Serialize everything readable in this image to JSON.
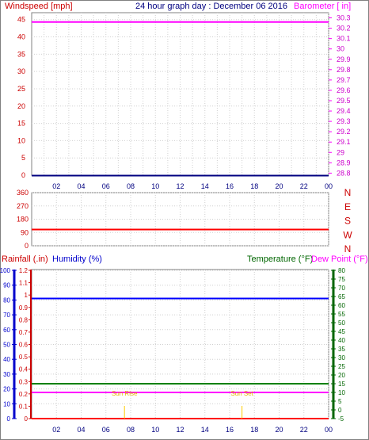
{
  "header": {
    "title": "24 hour graph day : December 06 2016",
    "left_label": "Windspeed [mph]",
    "right_label": "Barometer [ in]"
  },
  "colors": {
    "red": "#ff0000",
    "magenta": "#ff00ff",
    "blue": "#0000ff",
    "navy": "#000080",
    "green": "#006600",
    "gray": "#808080",
    "grid": "#d0d0d0",
    "sun": "#ffcc00"
  },
  "x_ticks": [
    "02",
    "04",
    "06",
    "08",
    "10",
    "12",
    "14",
    "16",
    "18",
    "20",
    "22",
    "00"
  ],
  "chart_data": [
    {
      "type": "line",
      "title": "24 hour graph day : December 06 2016",
      "ylabel": "Windspeed [mph]",
      "y2label": "Barometer [ in]",
      "y_ticks": [
        "0",
        "5",
        "10",
        "15",
        "20",
        "25",
        "30",
        "35",
        "40",
        "45"
      ],
      "y2_ticks": [
        "28.8",
        "28.9",
        "29",
        "29.1",
        "29.2",
        "29.3",
        "29.4",
        "29.5",
        "29.6",
        "29.7",
        "29.8",
        "29.9",
        "30",
        "30.1",
        "30.2",
        "30.3"
      ],
      "ylim": [
        0,
        47
      ],
      "y2lim": [
        28.78,
        30.35
      ],
      "series": [
        {
          "name": "Windspeed [mph]",
          "axis": "left",
          "values": [
            0,
            0
          ],
          "x": [
            0,
            24
          ]
        },
        {
          "name": "Barometer [ in]",
          "axis": "right",
          "values": [
            30.26,
            30.26
          ],
          "x": [
            0,
            24
          ]
        }
      ],
      "grid": true
    },
    {
      "type": "line",
      "y_ticks": [
        "0",
        "90",
        "180",
        "270",
        "360"
      ],
      "y_compass": [
        "N",
        "E",
        "S",
        "W",
        "N"
      ],
      "ylim": [
        0,
        360
      ],
      "series": [
        {
          "name": "Wind direction",
          "values": [
            110,
            110
          ],
          "x": [
            0,
            24
          ]
        }
      ],
      "grid": true
    },
    {
      "type": "line",
      "ylabel": "Rainfall (.in)",
      "ylabel2": "Humidity (%)",
      "y2label": "Temperature (°F)",
      "y2label2": "Dew Point (°F)",
      "humidity_ticks": [
        "0",
        "10",
        "20",
        "30",
        "40",
        "50",
        "60",
        "70",
        "80",
        "90",
        "100"
      ],
      "rain_ticks": [
        "0",
        "0.1",
        "0.2",
        "0.3",
        "0.4",
        "0.5",
        "0.6",
        "0.7",
        "0.8",
        "0.9",
        "1",
        "1.1",
        "1.2"
      ],
      "temp_ticks": [
        "-5",
        "0",
        "5",
        "10",
        "15",
        "20",
        "25",
        "30",
        "35",
        "40",
        "45",
        "50",
        "55",
        "60",
        "65",
        "70",
        "75",
        "80"
      ],
      "series": [
        {
          "name": "Rainfall (.in)",
          "axis": "rain",
          "values": [
            0,
            0
          ],
          "x": [
            0,
            24
          ]
        },
        {
          "name": "Humidity (%)",
          "axis": "humidity",
          "values": [
            81,
            81
          ],
          "x": [
            0,
            24
          ]
        },
        {
          "name": "Temperature (°F)",
          "axis": "temp",
          "values": [
            15,
            15
          ],
          "x": [
            0,
            24
          ]
        },
        {
          "name": "Dew Point (°F)",
          "axis": "temp",
          "values": [
            10,
            10
          ],
          "x": [
            0,
            24
          ]
        }
      ],
      "sunrise_label": "Sun Rise",
      "sunset_label": "Sun Set",
      "sunrise_x": 7.5,
      "sunset_x": 17.0,
      "grid": true
    }
  ]
}
